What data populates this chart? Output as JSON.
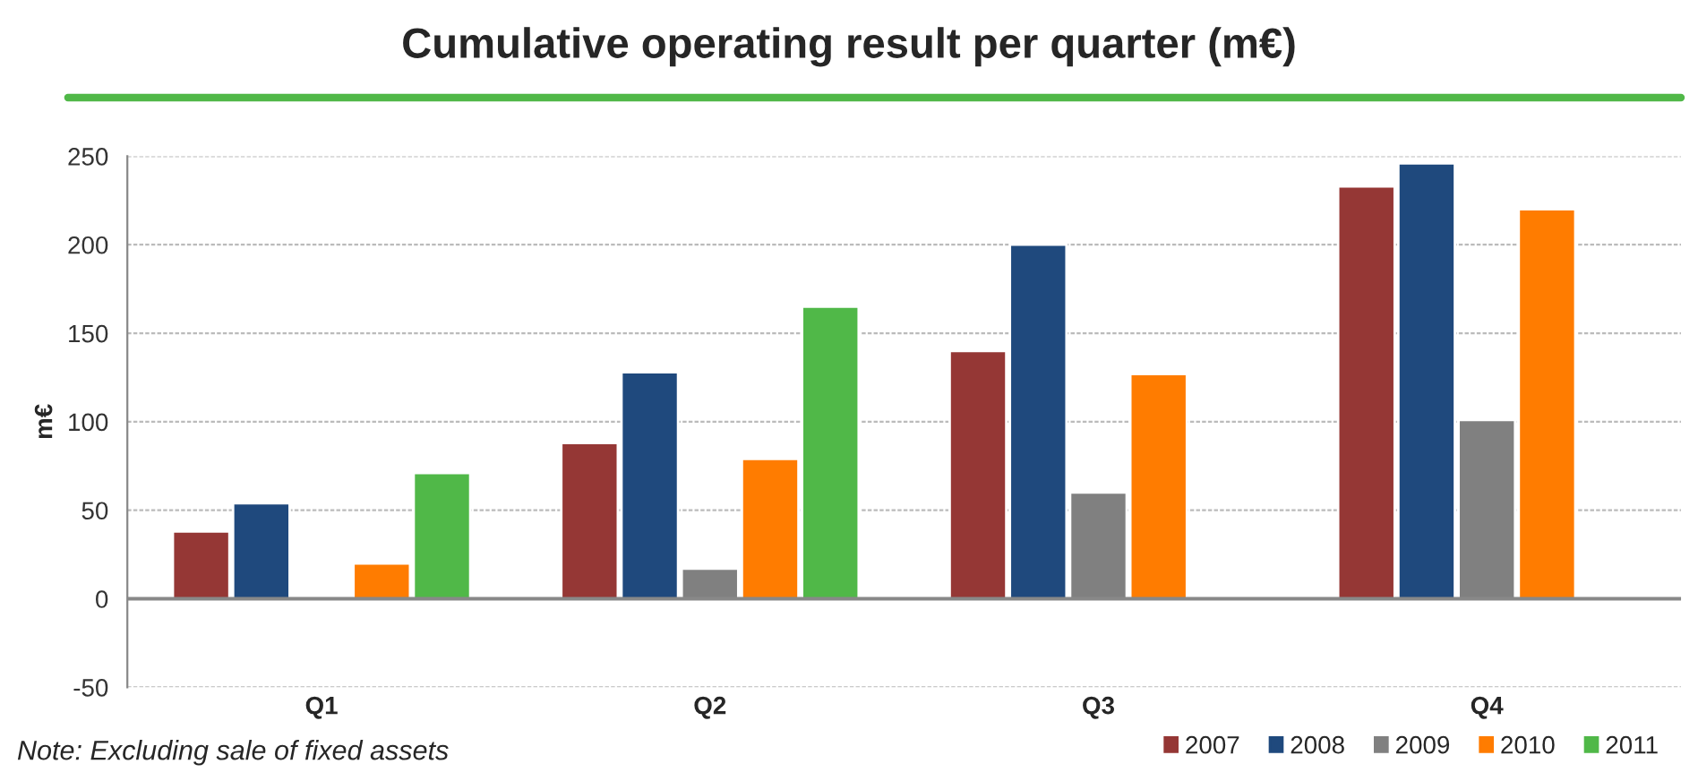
{
  "chart_data": {
    "type": "bar",
    "title": "Cumulative operating result per quarter (m€)",
    "ylabel": "m€",
    "categories": [
      "Q1",
      "Q2",
      "Q3",
      "Q4"
    ],
    "series": [
      {
        "name": "2007",
        "color": "#953735",
        "values": [
          38,
          88,
          140,
          233
        ]
      },
      {
        "name": "2008",
        "color": "#1f497d",
        "values": [
          54,
          128,
          200,
          246
        ]
      },
      {
        "name": "2009",
        "color": "#808080",
        "values": [
          -1,
          17,
          60,
          101
        ]
      },
      {
        "name": "2010",
        "color": "#ff7c00",
        "values": [
          20,
          79,
          127,
          220
        ]
      },
      {
        "name": "2011",
        "color": "#50b848",
        "values": [
          71,
          165,
          null,
          null
        ]
      }
    ],
    "ylim": [
      -50,
      250
    ],
    "yticks": [
      -50,
      0,
      50,
      100,
      150,
      200,
      250
    ],
    "grid": "y",
    "legend": "bottom right",
    "annotations": [
      "Note: Excluding sale of fixed assets"
    ]
  }
}
